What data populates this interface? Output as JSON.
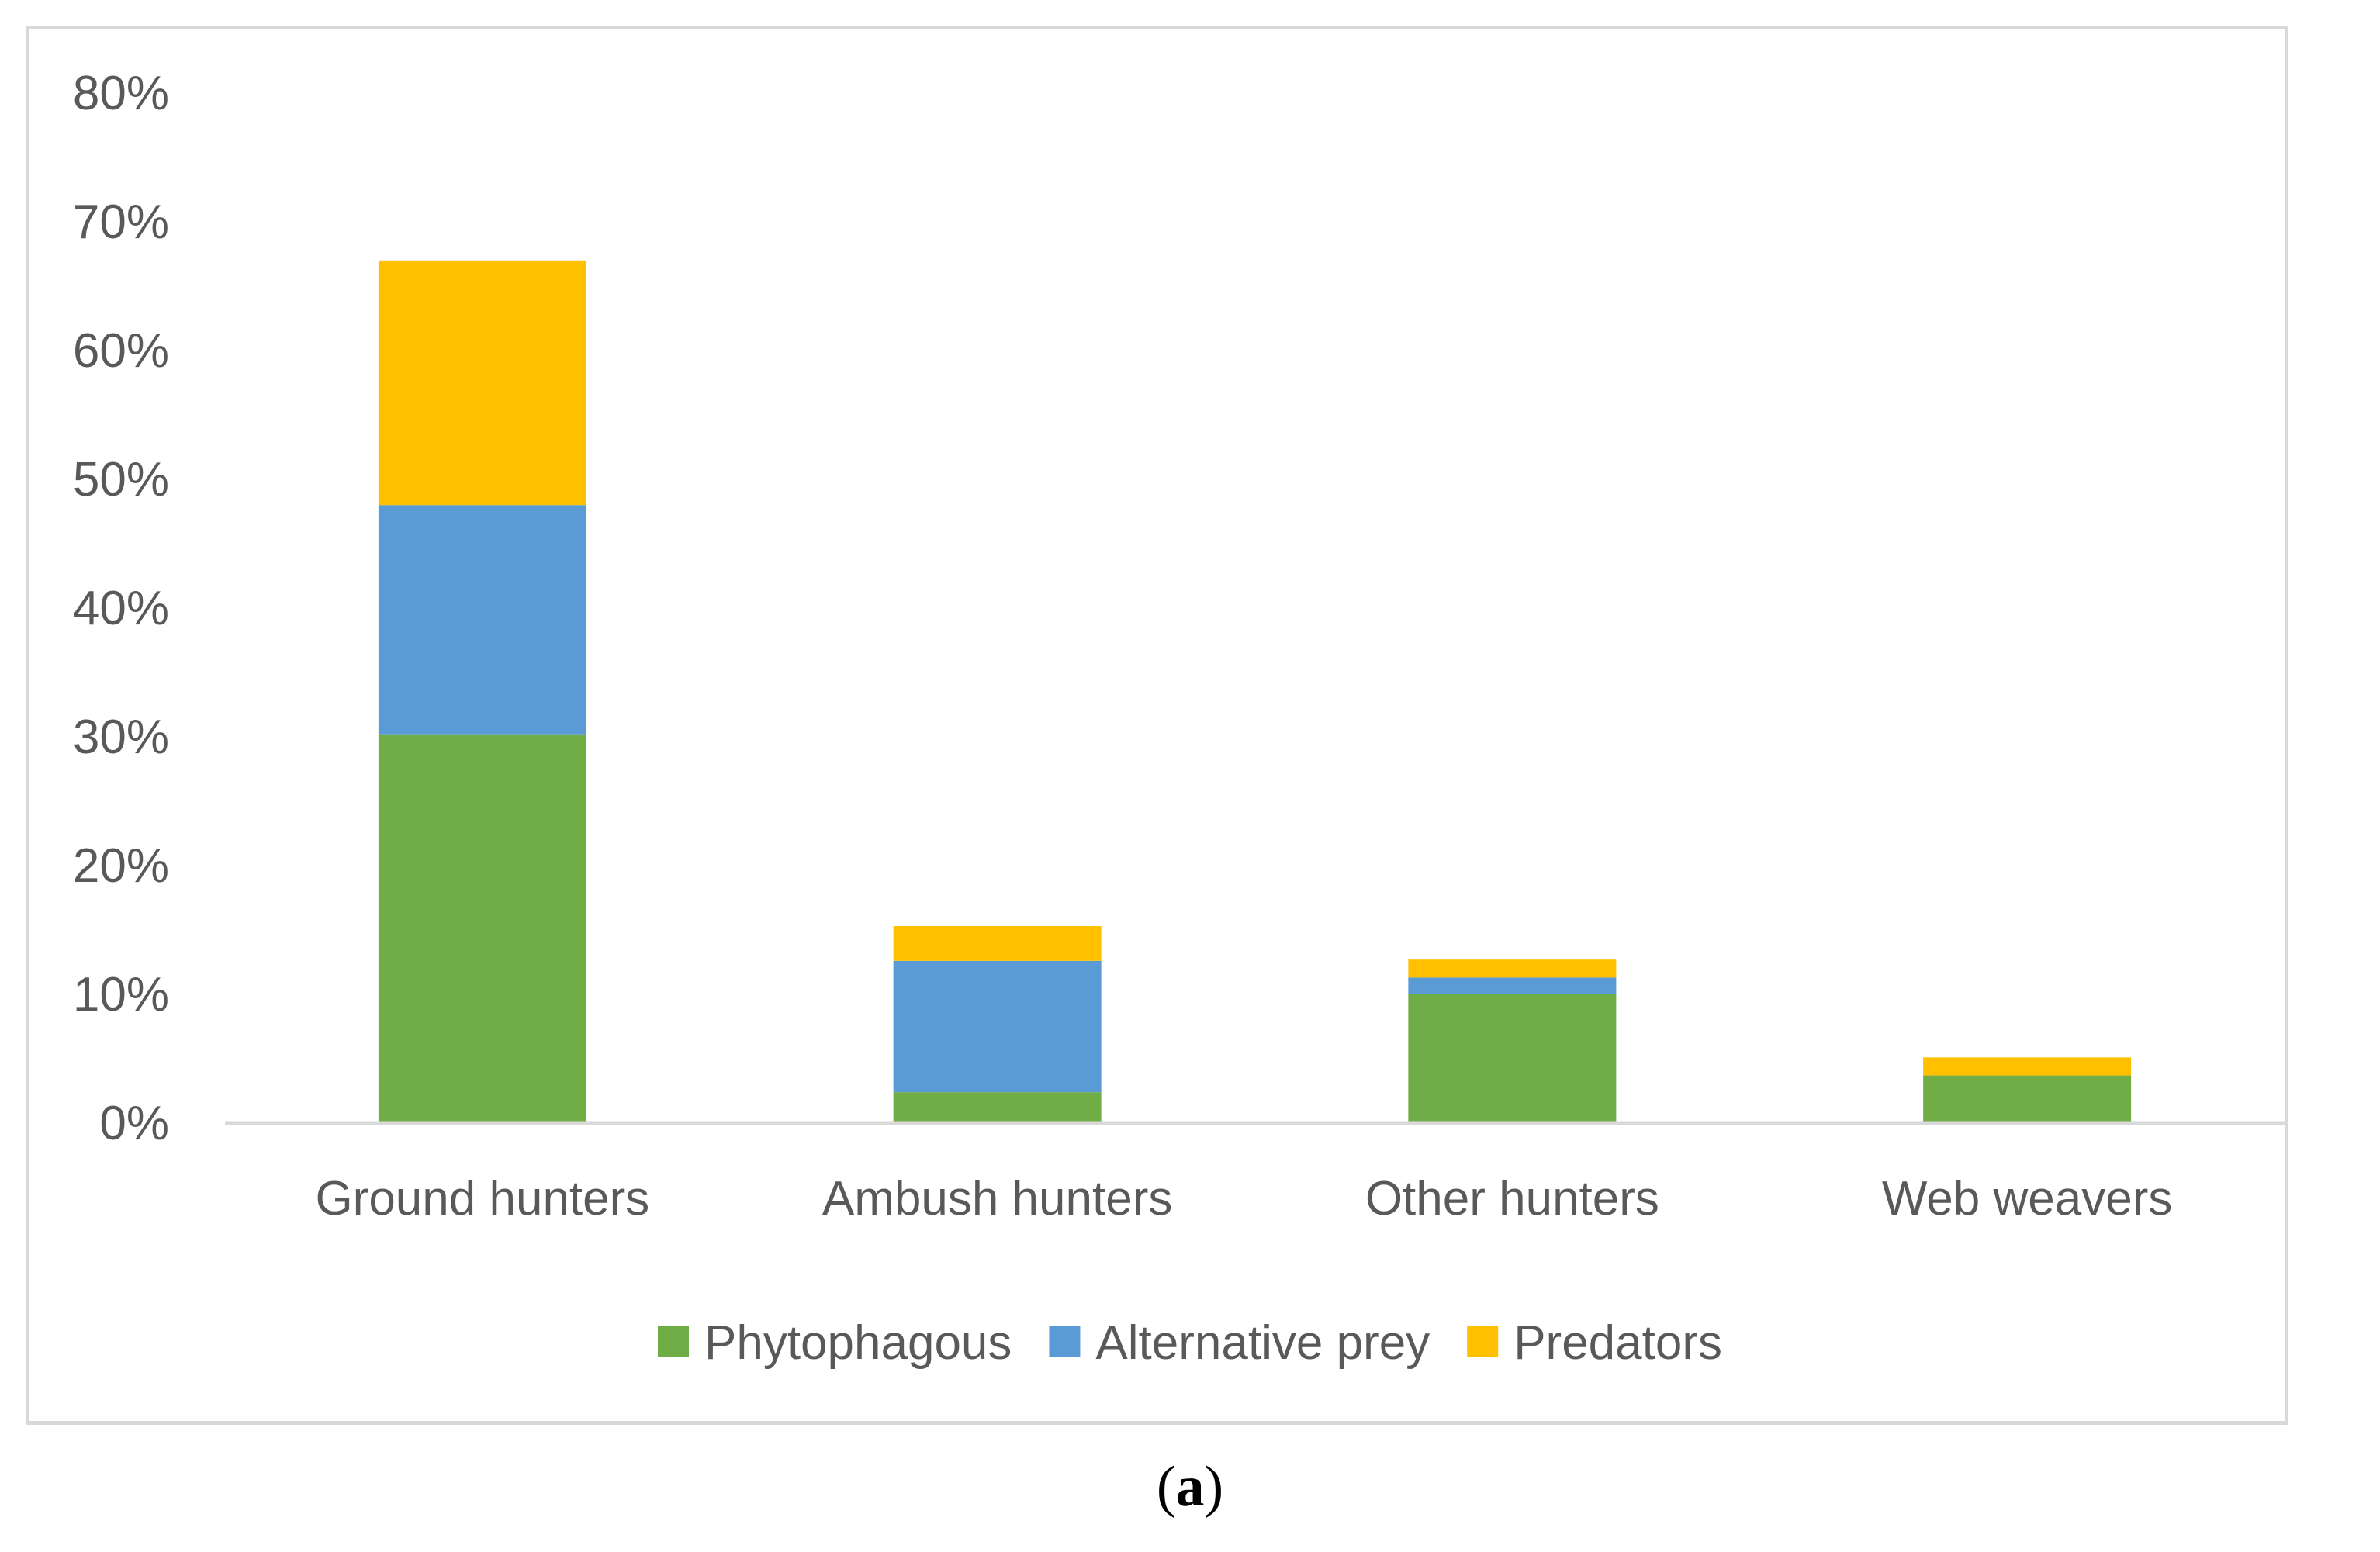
{
  "chart_data": {
    "type": "bar",
    "stacked": true,
    "categories": [
      "Ground hunters",
      "Ambush hunters",
      "Other hunters",
      "Web weavers"
    ],
    "series": [
      {
        "name": "Phytophagous",
        "color": "#70ad47",
        "values": [
          30.2,
          2.4,
          10.0,
          3.7
        ]
      },
      {
        "name": "Alternative prey",
        "color": "#5b9bd5",
        "values": [
          17.8,
          10.2,
          1.3,
          0.0
        ]
      },
      {
        "name": "Predators",
        "color": "#ffc000",
        "values": [
          19.0,
          2.7,
          1.4,
          1.4
        ]
      }
    ],
    "ylim": [
      0,
      80
    ],
    "yticks": [
      "0%",
      "10%",
      "20%",
      "30%",
      "40%",
      "50%",
      "60%",
      "70%",
      "80%"
    ],
    "grid": false,
    "legend_position": "bottom"
  },
  "caption": {
    "open": "(",
    "letter": "a",
    "close": ")"
  }
}
